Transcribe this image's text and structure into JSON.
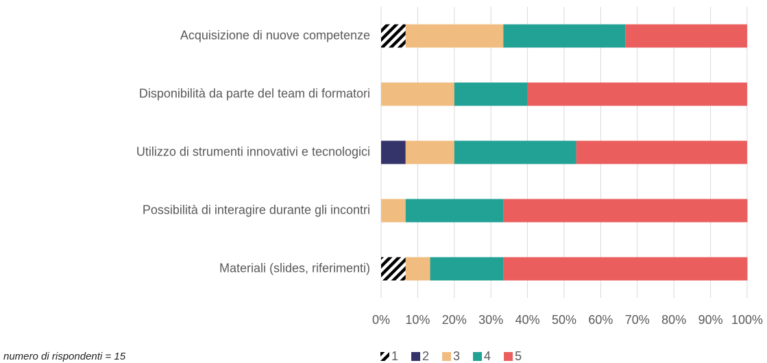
{
  "chart_data": {
    "type": "stacked-bar-horizontal",
    "categories": [
      "Acquisizione di nuove competenze",
      "Disponibilità da parte del team di formatori",
      "Utilizzo di strumenti innovativi e tecnologici",
      "Possibilità di interagire durante gli incontri",
      "Materiali (slides, riferimenti)"
    ],
    "series": [
      {
        "name": "1",
        "color": "#000000",
        "hatch": true,
        "values": [
          6.7,
          0,
          0,
          0,
          6.7
        ]
      },
      {
        "name": "2",
        "color": "#34346a",
        "values": [
          0,
          0,
          6.7,
          0,
          0
        ]
      },
      {
        "name": "3",
        "color": "#f0bc80",
        "values": [
          26.7,
          20,
          13.3,
          6.7,
          6.7
        ]
      },
      {
        "name": "4",
        "color": "#22a195",
        "values": [
          33.3,
          20,
          33.3,
          26.7,
          20
        ]
      },
      {
        "name": "5",
        "color": "#ea5f5e",
        "values": [
          33.3,
          60,
          46.7,
          66.7,
          66.7
        ]
      }
    ],
    "xlim": [
      0,
      100
    ],
    "xticks": [
      {
        "value": 0,
        "label": "0%"
      },
      {
        "value": 10,
        "label": "10%"
      },
      {
        "value": 20,
        "label": "20%"
      },
      {
        "value": 30,
        "label": "30%"
      },
      {
        "value": 40,
        "label": "40%"
      },
      {
        "value": 50,
        "label": "50%"
      },
      {
        "value": 60,
        "label": "60%"
      },
      {
        "value": 70,
        "label": "70%"
      },
      {
        "value": 80,
        "label": "80%"
      },
      {
        "value": 90,
        "label": "90%"
      },
      {
        "value": 100,
        "label": "100%"
      }
    ],
    "grid": true,
    "legend": "bottom",
    "annotation": "numero di rispondenti = 15"
  }
}
